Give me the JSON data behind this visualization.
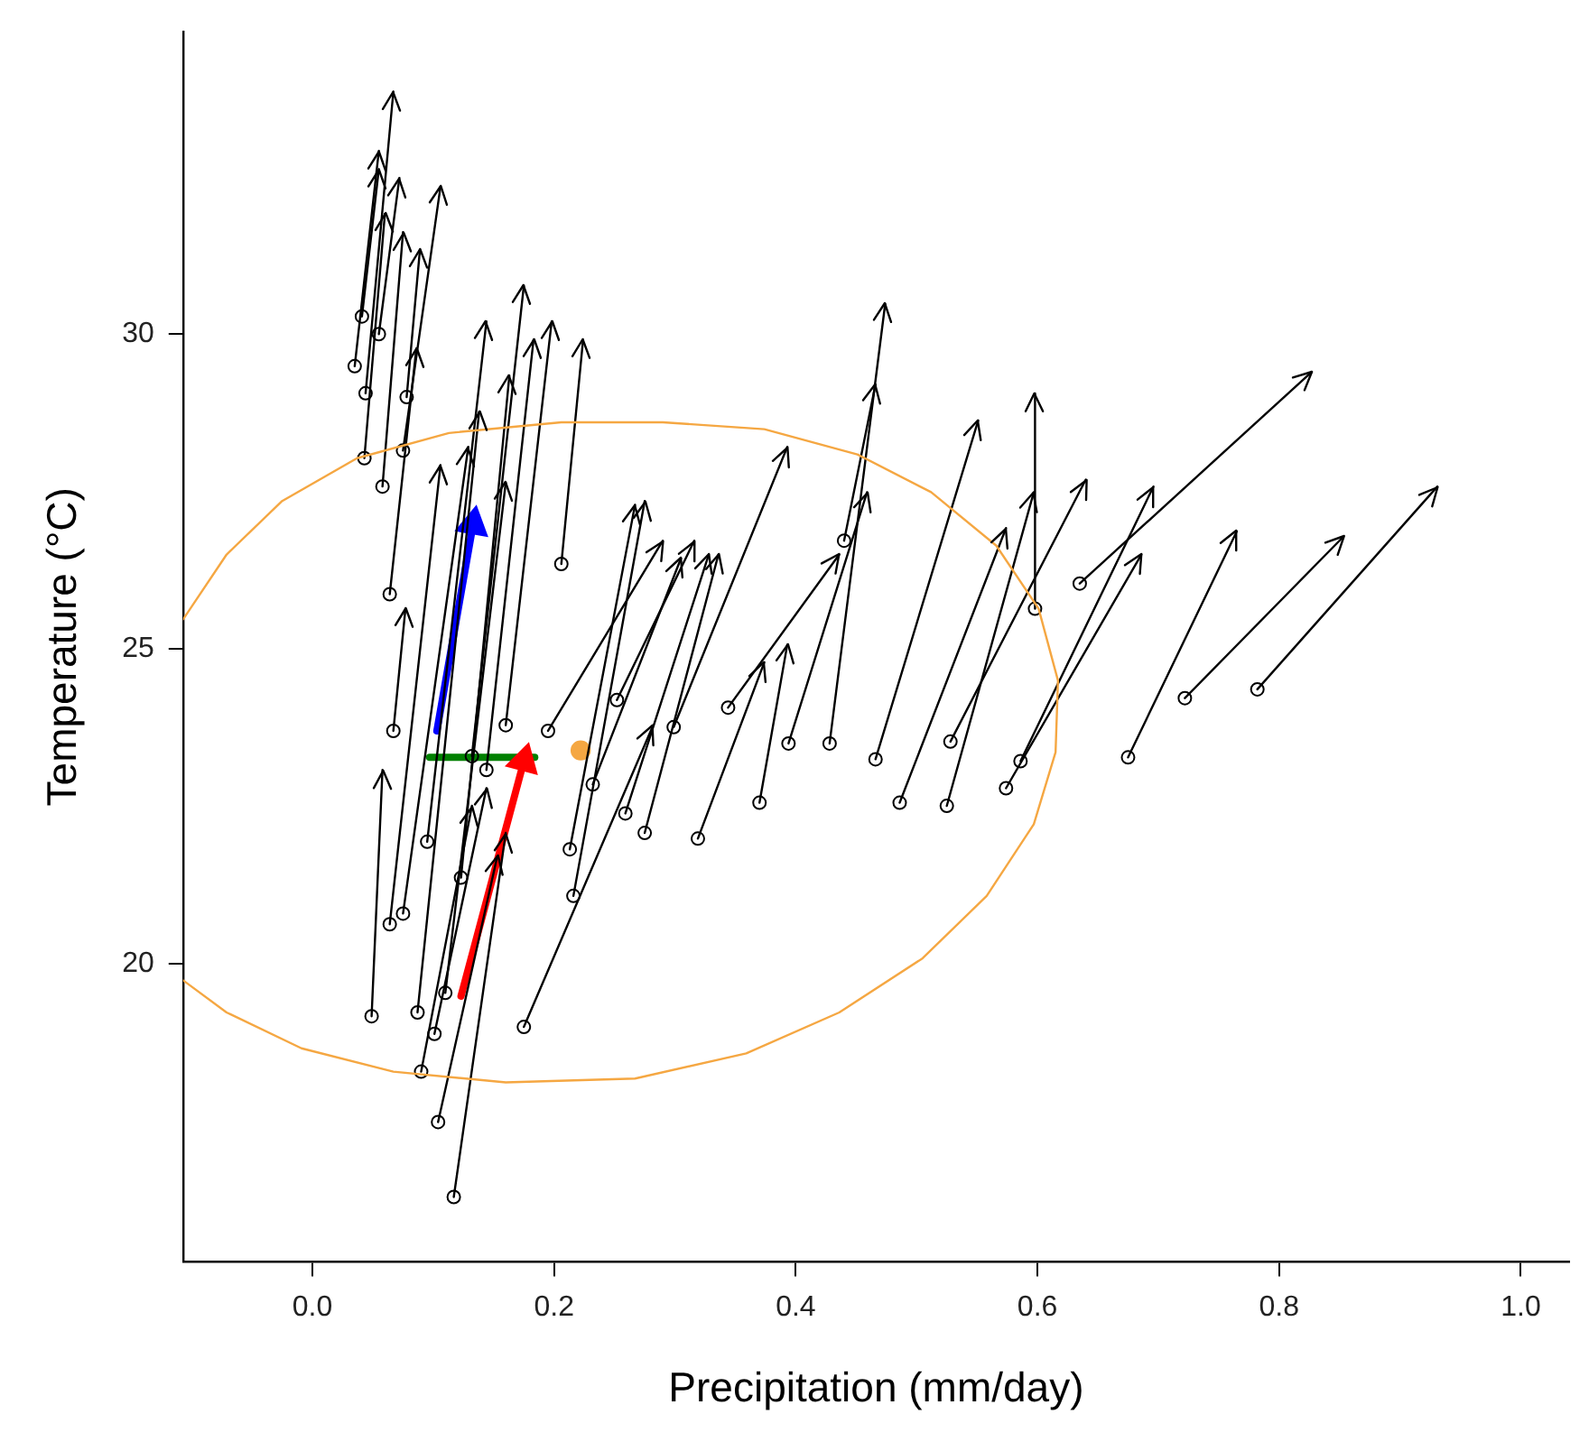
{
  "chart_data": {
    "type": "line",
    "xlabel": "Precipitation (mm/day)",
    "ylabel": "Temperature (°C)",
    "xlim": [
      -0.107,
      1.04
    ],
    "ylim": [
      15.27,
      34.8
    ],
    "xticks": [
      {
        "value": 0,
        "label": "0.0"
      },
      {
        "value": 0.2,
        "label": "0.2"
      },
      {
        "value": 0.4,
        "label": "0.4"
      },
      {
        "value": 0.6,
        "label": "0.6"
      },
      {
        "value": 0.8,
        "label": "0.8"
      },
      {
        "value": 1,
        "label": "1.0"
      }
    ],
    "yticks": [
      20,
      25,
      30
    ],
    "grid": false,
    "legend": false,
    "series": [
      {
        "type": "line",
        "color": "#f5a742",
        "marker": "none",
        "x": [
          -0.107,
          -0.071,
          -0.025,
          0.037,
          0.113,
          0.206,
          0.29,
          0.374,
          0.451,
          0.512,
          0.566,
          0.601,
          0.617,
          0.615,
          0.597,
          0.558,
          0.505,
          0.436,
          0.359,
          0.267,
          0.16,
          0.067,
          -0.009,
          -0.071,
          -0.107
        ],
        "values": [
          25.47,
          26.5,
          27.35,
          28.03,
          28.43,
          28.6,
          28.6,
          28.49,
          28.09,
          27.49,
          26.64,
          25.64,
          24.5,
          23.36,
          22.22,
          21.08,
          20.09,
          19.23,
          18.58,
          18.18,
          18.12,
          18.29,
          18.66,
          19.23,
          19.74
        ]
      },
      {
        "type": "line",
        "color": "#000000",
        "marker": "circle",
        "x": [
          0.035,
          0.055
        ],
        "values": [
          29.49,
          32.91
        ]
      },
      {
        "type": "line",
        "color": "#000000",
        "marker": "circle",
        "x": [
          0.044,
          0.067
        ],
        "values": [
          29.06,
          33.85
        ]
      },
      {
        "type": "line",
        "color": "#000000",
        "marker": "circle",
        "x": [
          0.041,
          0.055
        ],
        "values": [
          30.28,
          32.62
        ]
      },
      {
        "type": "line",
        "color": "#000000",
        "marker": "circle",
        "x": [
          0.055,
          0.072
        ],
        "values": [
          30.0,
          32.48
        ]
      },
      {
        "type": "line",
        "color": "#000000",
        "marker": "circle",
        "x": [
          0.043,
          0.06
        ],
        "values": [
          28.03,
          31.91
        ]
      },
      {
        "type": "line",
        "color": "#000000",
        "marker": "circle",
        "x": [
          0.078,
          0.089
        ],
        "values": [
          29.0,
          31.34
        ]
      },
      {
        "type": "line",
        "color": "#000000",
        "marker": "circle",
        "x": [
          0.075,
          0.106
        ],
        "values": [
          28.15,
          32.34
        ]
      },
      {
        "type": "line",
        "color": "#000000",
        "marker": "circle",
        "x": [
          0.058,
          0.075
        ],
        "values": [
          27.58,
          31.62
        ]
      },
      {
        "type": "line",
        "color": "#000000",
        "marker": "circle",
        "x": [
          0.064,
          0.086
        ],
        "values": [
          25.87,
          29.77
        ]
      },
      {
        "type": "line",
        "color": "#000000",
        "marker": "circle",
        "x": [
          0.782,
          0.931
        ],
        "values": [
          24.36,
          27.58
        ]
      },
      {
        "type": "line",
        "color": "#000000",
        "marker": "circle",
        "x": [
          0.722,
          0.853
        ],
        "values": [
          24.22,
          26.78
        ]
      },
      {
        "type": "line",
        "color": "#000000",
        "marker": "circle",
        "x": [
          0.635,
          0.827
        ],
        "values": [
          26.04,
          29.4
        ]
      },
      {
        "type": "line",
        "color": "#000000",
        "marker": "circle",
        "x": [
          0.675,
          0.765
        ],
        "values": [
          23.28,
          26.87
        ]
      },
      {
        "type": "line",
        "color": "#000000",
        "marker": "circle",
        "x": [
          0.586,
          0.696
        ],
        "values": [
          23.22,
          27.58
        ]
      },
      {
        "type": "line",
        "color": "#000000",
        "marker": "circle",
        "x": [
          0.574,
          0.686
        ],
        "values": [
          22.79,
          26.5
        ]
      },
      {
        "type": "line",
        "color": "#000000",
        "marker": "circle",
        "x": [
          0.525,
          0.597
        ],
        "values": [
          22.51,
          27.49
        ]
      },
      {
        "type": "line",
        "color": "#000000",
        "marker": "circle",
        "x": [
          0.486,
          0.574
        ],
        "values": [
          22.56,
          26.92
        ]
      },
      {
        "type": "line",
        "color": "#000000",
        "marker": "circle",
        "x": [
          0.466,
          0.551
        ],
        "values": [
          23.25,
          28.63
        ]
      },
      {
        "type": "line",
        "color": "#000000",
        "marker": "circle",
        "x": [
          0.428,
          0.474
        ],
        "values": [
          23.5,
          30.48
        ]
      },
      {
        "type": "line",
        "color": "#000000",
        "marker": "circle",
        "x": [
          0.44,
          0.466
        ],
        "values": [
          26.72,
          29.2
        ]
      },
      {
        "type": "line",
        "color": "#000000",
        "marker": "circle",
        "x": [
          0.598,
          0.598
        ],
        "values": [
          25.64,
          29.06
        ]
      },
      {
        "type": "line",
        "color": "#000000",
        "marker": "circle",
        "x": [
          0.37,
          0.393
        ],
        "values": [
          22.56,
          25.07
        ]
      },
      {
        "type": "line",
        "color": "#000000",
        "marker": "circle",
        "x": [
          0.344,
          0.436
        ],
        "values": [
          24.07,
          26.5
        ]
      },
      {
        "type": "line",
        "color": "#000000",
        "marker": "circle",
        "x": [
          0.252,
          0.316
        ],
        "values": [
          24.19,
          26.72
        ]
      },
      {
        "type": "line",
        "color": "#000000",
        "marker": "circle",
        "x": [
          0.319,
          0.374
        ],
        "values": [
          21.99,
          24.79
        ]
      },
      {
        "type": "line",
        "color": "#000000",
        "marker": "circle",
        "x": [
          0.232,
          0.305
        ],
        "values": [
          22.85,
          26.44
        ]
      },
      {
        "type": "line",
        "color": "#000000",
        "marker": "circle",
        "x": [
          0.259,
          0.328
        ],
        "values": [
          22.39,
          26.5
        ]
      },
      {
        "type": "line",
        "color": "#000000",
        "marker": "circle",
        "x": [
          0.216,
          0.275
        ],
        "values": [
          21.08,
          27.35
        ]
      },
      {
        "type": "line",
        "color": "#000000",
        "marker": "circle",
        "x": [
          0.299,
          0.393
        ],
        "values": [
          23.76,
          28.21
        ]
      },
      {
        "type": "line",
        "color": "#000000",
        "marker": "circle",
        "x": [
          0.117,
          0.16
        ],
        "values": [
          16.3,
          22.08
        ]
      },
      {
        "type": "line",
        "color": "#000000",
        "marker": "circle",
        "x": [
          0.104,
          0.153
        ],
        "values": [
          17.49,
          21.71
        ]
      },
      {
        "type": "line",
        "color": "#000000",
        "marker": "circle",
        "x": [
          0.09,
          0.132
        ],
        "values": [
          18.29,
          22.51
        ]
      },
      {
        "type": "line",
        "color": "#000000",
        "marker": "circle",
        "x": [
          0.101,
          0.144
        ],
        "values": [
          18.89,
          22.79
        ]
      },
      {
        "type": "line",
        "color": "#000000",
        "marker": "circle",
        "x": [
          0.11,
          0.16
        ],
        "values": [
          19.54,
          27.64
        ]
      },
      {
        "type": "line",
        "color": "#000000",
        "marker": "circle",
        "x": [
          0.087,
          0.138
        ],
        "values": [
          19.23,
          28.77
        ]
      },
      {
        "type": "line",
        "color": "#000000",
        "marker": "circle",
        "x": [
          0.075,
          0.129
        ],
        "values": [
          20.8,
          28.21
        ]
      },
      {
        "type": "line",
        "color": "#000000",
        "marker": "circle",
        "x": [
          0.064,
          0.106
        ],
        "values": [
          20.63,
          27.92
        ]
      },
      {
        "type": "line",
        "color": "#000000",
        "marker": "circle",
        "x": [
          0.049,
          0.058
        ],
        "values": [
          19.17,
          23.08
        ]
      },
      {
        "type": "line",
        "color": "#000000",
        "marker": "circle",
        "x": [
          0.067,
          0.077
        ],
        "values": [
          23.7,
          25.64
        ]
      },
      {
        "type": "line",
        "color": "#000000",
        "marker": "circle",
        "x": [
          0.132,
          0.175
        ],
        "values": [
          23.3,
          30.77
        ]
      },
      {
        "type": "line",
        "color": "#000000",
        "marker": "circle",
        "x": [
          0.16,
          0.198
        ],
        "values": [
          23.79,
          30.2
        ]
      },
      {
        "type": "line",
        "color": "#000000",
        "marker": "circle",
        "x": [
          0.144,
          0.183
        ],
        "values": [
          23.08,
          29.91
        ]
      },
      {
        "type": "line",
        "color": "#000000",
        "marker": "circle",
        "x": [
          0.123,
          0.163
        ],
        "values": [
          21.37,
          29.34
        ]
      },
      {
        "type": "line",
        "color": "#000000",
        "marker": "circle",
        "x": [
          0.095,
          0.144
        ],
        "values": [
          21.94,
          30.2
        ]
      },
      {
        "type": "line",
        "color": "#000000",
        "marker": "circle",
        "x": [
          0.175,
          0.282
        ],
        "values": [
          19.0,
          23.79
        ]
      },
      {
        "type": "line",
        "color": "#000000",
        "marker": "circle",
        "x": [
          0.213,
          0.267
        ],
        "values": [
          21.82,
          27.29
        ]
      },
      {
        "type": "line",
        "color": "#000000",
        "marker": "circle",
        "x": [
          0.206,
          0.224
        ],
        "values": [
          26.35,
          29.91
        ]
      },
      {
        "type": "line",
        "color": "#000000",
        "marker": "circle",
        "x": [
          0.195,
          0.29
        ],
        "values": [
          23.7,
          26.72
        ]
      },
      {
        "type": "line",
        "color": "#000000",
        "marker": "circle",
        "x": [
          0.528,
          0.64
        ],
        "values": [
          23.53,
          27.69
        ]
      },
      {
        "type": "line",
        "color": "#000000",
        "marker": "circle",
        "x": [
          0.394,
          0.459
        ],
        "values": [
          23.5,
          27.49
        ]
      },
      {
        "type": "line",
        "color": "#000000",
        "marker": "circle",
        "x": [
          0.275,
          0.336
        ],
        "values": [
          22.08,
          26.5
        ]
      },
      {
        "type": "line",
        "color": "#0000ff",
        "marker": "triangle",
        "x": [
          0.103,
          0.133
        ],
        "values": [
          23.7,
          26.98
        ]
      },
      {
        "type": "line",
        "color": "#ff0000",
        "marker": "triangle",
        "x": [
          0.123,
          0.175
        ],
        "values": [
          19.49,
          23.22
        ]
      },
      {
        "type": "line",
        "color": "#008000",
        "marker": "none",
        "x": [
          0.097,
          0.184
        ],
        "values": [
          23.28,
          23.28
        ]
      },
      {
        "type": "scatter",
        "color": "#f5a742",
        "marker": "circle",
        "x": [
          0.222
        ],
        "values": [
          23.39
        ]
      }
    ]
  }
}
